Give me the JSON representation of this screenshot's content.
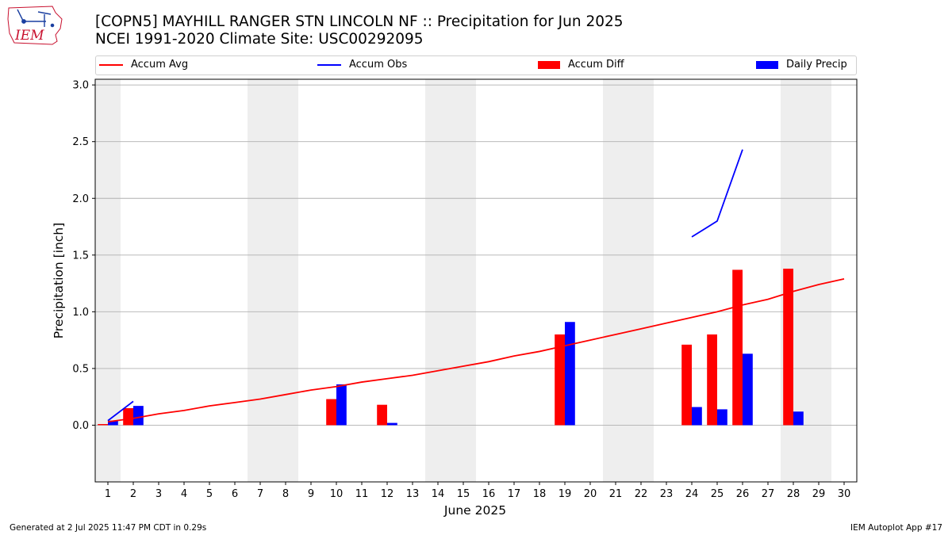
{
  "logo": {
    "text": "IEM",
    "color": "#c8102e"
  },
  "title_line1": "[COPN5] MAYHILL RANGER STN LINCOLN NF :: Precipitation for Jun 2025",
  "title_line2": "NCEI 1991-2020 Climate Site: USC00292095",
  "footer_left": "Generated at 2 Jul 2025 11:47 PM CDT in 0.29s",
  "footer_right": "IEM Autoplot App #17",
  "chart_data": {
    "type": "bar",
    "xlabel": "June 2025",
    "ylabel": "Precipitation [inch]",
    "ylim": [
      -0.5,
      3.05
    ],
    "xlim": [
      0.5,
      30.5
    ],
    "yticks": [
      "0.0",
      "0.5",
      "1.0",
      "1.5",
      "2.0",
      "2.5",
      "3.0"
    ],
    "x": [
      1,
      2,
      3,
      4,
      5,
      6,
      7,
      8,
      9,
      10,
      11,
      12,
      13,
      14,
      15,
      16,
      17,
      18,
      19,
      20,
      21,
      22,
      23,
      24,
      25,
      26,
      27,
      28,
      29,
      30
    ],
    "grid": "horizontal",
    "legend_position": "top",
    "weekend_shading": [
      [
        0.5,
        1.5
      ],
      [
        6.5,
        8.5
      ],
      [
        13.5,
        15.5
      ],
      [
        20.5,
        22.5
      ],
      [
        27.5,
        29.5
      ]
    ],
    "shade_color": "#eeeeee",
    "series": [
      {
        "name": "Accum Avg",
        "kind": "line",
        "color": "#ff0000",
        "values": [
          0.03,
          0.06,
          0.1,
          0.13,
          0.17,
          0.2,
          0.23,
          0.27,
          0.31,
          0.34,
          0.38,
          0.41,
          0.44,
          0.48,
          0.52,
          0.56,
          0.61,
          0.65,
          0.7,
          0.75,
          0.8,
          0.85,
          0.9,
          0.95,
          1.0,
          1.06,
          1.11,
          1.18,
          1.24,
          1.29
        ]
      },
      {
        "name": "Accum Obs",
        "kind": "line",
        "color": "#0000ff",
        "values": [
          0.04,
          0.21,
          null,
          null,
          null,
          null,
          null,
          null,
          null,
          null,
          null,
          null,
          null,
          null,
          null,
          null,
          null,
          null,
          null,
          null,
          null,
          null,
          null,
          1.66,
          1.8,
          2.43,
          null,
          null,
          null,
          null
        ]
      },
      {
        "name": "Accum Diff",
        "kind": "bar",
        "color": "#ff0000",
        "offset": -0.2,
        "values": [
          0.01,
          0.15,
          null,
          null,
          null,
          null,
          null,
          null,
          null,
          0.23,
          null,
          0.18,
          null,
          null,
          null,
          null,
          null,
          null,
          0.8,
          null,
          null,
          null,
          null,
          0.71,
          0.8,
          1.37,
          null,
          1.38,
          null,
          null
        ]
      },
      {
        "name": "Daily Precip",
        "kind": "bar",
        "color": "#0000ff",
        "offset": 0.2,
        "values": [
          0.04,
          0.17,
          null,
          null,
          null,
          null,
          null,
          null,
          null,
          0.36,
          null,
          0.02,
          null,
          null,
          null,
          null,
          null,
          null,
          0.91,
          null,
          null,
          null,
          null,
          0.16,
          0.14,
          0.63,
          null,
          0.12,
          null,
          null
        ]
      }
    ]
  }
}
